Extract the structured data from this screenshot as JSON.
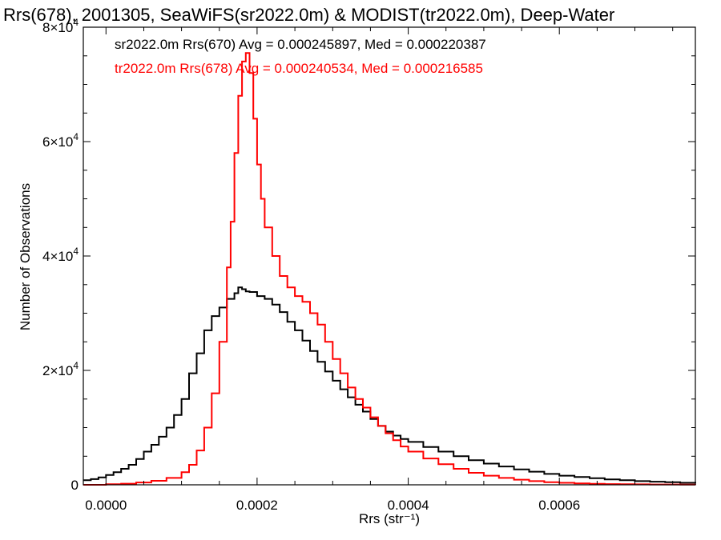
{
  "chart_data": {
    "type": "line",
    "title": "Rrs(678), 2001305, SeaWiFS(sr2022.0m) & MODIST(tr2022.0m), Deep-Water",
    "xlabel": "Rrs (str⁻¹)",
    "ylabel": "Number of Observations",
    "xlim": [
      -3e-05,
      0.00078
    ],
    "ylim": [
      0,
      80000
    ],
    "x_ticks": [
      {
        "value": 0.0,
        "label": "0.0000"
      },
      {
        "value": 0.0002,
        "label": "0.0002"
      },
      {
        "value": 0.0004,
        "label": "0.0004"
      },
      {
        "value": 0.0006,
        "label": "0.0006"
      }
    ],
    "y_ticks": [
      {
        "value": 0,
        "mant": "0",
        "exp": ""
      },
      {
        "value": 20000,
        "mant": "2×10",
        "exp": "4"
      },
      {
        "value": 40000,
        "mant": "4×10",
        "exp": "4"
      },
      {
        "value": 60000,
        "mant": "6×10",
        "exp": "4"
      },
      {
        "value": 80000,
        "mant": "8×10",
        "exp": "4"
      }
    ],
    "annotations": [
      {
        "text": "sr2022.0m Rrs(670) Avg = 0.000245897, Med = 0.000220387",
        "color": "#000000"
      },
      {
        "text": "tr2022.0m Rrs(678) Avg = 0.000240534, Med = 0.000216585",
        "color": "#ff0000"
      }
    ],
    "series": [
      {
        "color": "#000000",
        "step": true,
        "x": [
          -3e-05,
          -2e-05,
          -1e-05,
          0.0,
          1e-05,
          2e-05,
          3e-05,
          4e-05,
          5e-05,
          6e-05,
          7e-05,
          8e-05,
          9e-05,
          0.0001,
          0.00011,
          0.00012,
          0.00013,
          0.00014,
          0.00015,
          0.00016,
          0.00017,
          0.000175,
          0.00018,
          0.000185,
          0.00019,
          0.0002,
          0.00021,
          0.00022,
          0.00023,
          0.00024,
          0.00025,
          0.00026,
          0.00027,
          0.00028,
          0.00029,
          0.0003,
          0.00031,
          0.00032,
          0.00033,
          0.00034,
          0.00035,
          0.00036,
          0.00037,
          0.00038,
          0.00039,
          0.0004,
          0.00042,
          0.00044,
          0.00046,
          0.00048,
          0.0005,
          0.00052,
          0.00054,
          0.00056,
          0.00058,
          0.0006,
          0.00062,
          0.00064,
          0.00066,
          0.00068,
          0.0007,
          0.00072,
          0.00074,
          0.00076,
          0.00078
        ],
        "values": [
          800,
          1000,
          1300,
          1700,
          2200,
          2800,
          3500,
          4500,
          5800,
          7000,
          8400,
          10000,
          12200,
          15000,
          19500,
          23000,
          27000,
          29500,
          31000,
          32500,
          33500,
          34500,
          34200,
          33800,
          33700,
          33000,
          32500,
          31500,
          30200,
          28500,
          27000,
          25200,
          23400,
          21500,
          19800,
          18200,
          16700,
          15300,
          14000,
          12800,
          11500,
          10300,
          9300,
          8600,
          8000,
          7500,
          6600,
          5800,
          5000,
          4300,
          3700,
          3200,
          2700,
          2300,
          1900,
          1600,
          1350,
          1150,
          950,
          800,
          650,
          550,
          450,
          350,
          300
        ]
      },
      {
        "color": "#ff0000",
        "step": true,
        "x": [
          -3e-05,
          0.0,
          2e-05,
          4e-05,
          6e-05,
          8e-05,
          0.0001,
          0.00011,
          0.00012,
          0.00013,
          0.00014,
          0.00015,
          0.00016,
          0.000165,
          0.00017,
          0.000175,
          0.00018,
          0.000185,
          0.00019,
          0.000195,
          0.0002,
          0.000205,
          0.00021,
          0.00022,
          0.00023,
          0.00024,
          0.00025,
          0.00026,
          0.00027,
          0.00028,
          0.00029,
          0.0003,
          0.00031,
          0.00032,
          0.00033,
          0.00034,
          0.00035,
          0.00036,
          0.00037,
          0.00038,
          0.00039,
          0.0004,
          0.00042,
          0.00044,
          0.00046,
          0.00048,
          0.0005,
          0.00052,
          0.00054,
          0.00056,
          0.00058,
          0.0006,
          0.00062,
          0.00064,
          0.00066,
          0.00068,
          0.0007,
          0.00072,
          0.00074,
          0.00076,
          0.00078
        ],
        "values": [
          0,
          100,
          200,
          400,
          700,
          1200,
          2200,
          3500,
          6000,
          10000,
          16000,
          25000,
          38000,
          46000,
          58000,
          68000,
          74000,
          75500,
          72000,
          64000,
          56000,
          50000,
          45000,
          40000,
          36500,
          34500,
          33000,
          32000,
          30000,
          28000,
          25000,
          22000,
          19500,
          17000,
          15000,
          13500,
          11800,
          10300,
          9000,
          7800,
          6700,
          5800,
          4600,
          3600,
          2800,
          2100,
          1600,
          1200,
          900,
          650,
          450,
          350,
          250,
          180,
          130,
          100,
          80,
          60,
          50,
          40,
          30
        ]
      }
    ],
    "grid": false,
    "legend": "none"
  }
}
